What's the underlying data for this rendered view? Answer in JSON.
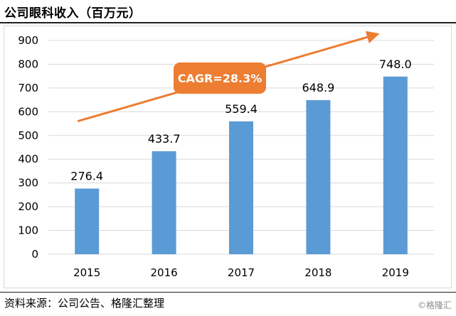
{
  "header": {
    "title": "公司眼科收入（百万元）"
  },
  "footer": {
    "source": "资料来源：公司公告、格隆汇整理",
    "watermark": "©格隆汇"
  },
  "colors": {
    "bar": "#5B9BD5",
    "arrow": "#ED7D31",
    "badge": "#ED7D31",
    "grid": "#d9d9d9",
    "axis": "#d9d9d9"
  },
  "chart_data": {
    "type": "bar",
    "title": "公司眼科收入（百万元）",
    "categories": [
      "2015",
      "2016",
      "2017",
      "2018",
      "2019"
    ],
    "values": [
      276.4,
      433.7,
      559.4,
      648.9,
      748.0
    ],
    "value_labels": [
      "276.4",
      "433.7",
      "559.4",
      "648.9",
      "748.0"
    ],
    "ylim": [
      0,
      900
    ],
    "yticks": [
      0,
      100,
      200,
      300,
      400,
      500,
      600,
      700,
      800,
      900
    ],
    "xlabel": "",
    "ylabel": "",
    "grid": true,
    "annotation": {
      "text": "CAGR=28.3%",
      "arrow": "trend",
      "arrow_start_value": 560,
      "arrow_end_value": 930
    }
  }
}
